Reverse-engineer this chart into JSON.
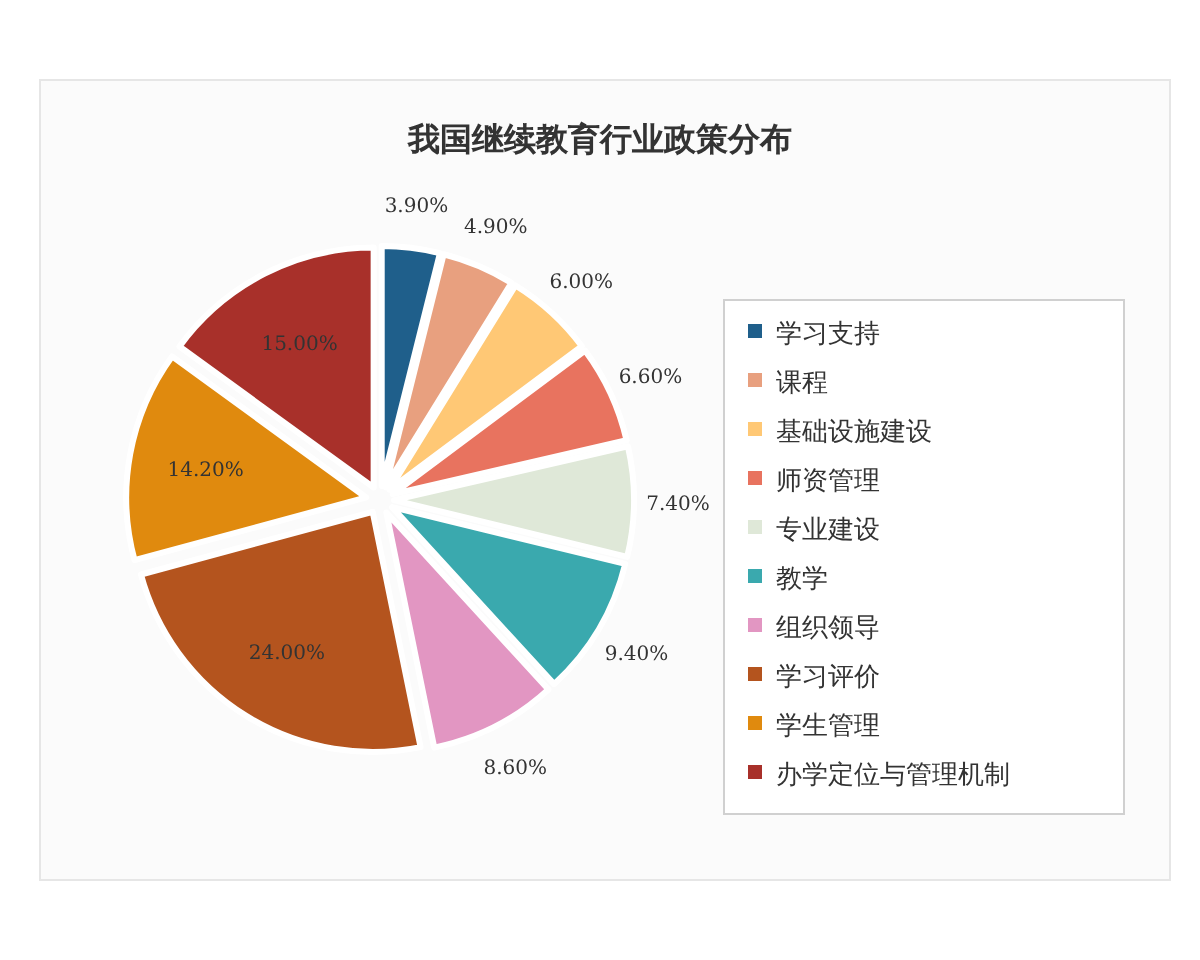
{
  "chart_data": {
    "type": "pie",
    "title": "我国继续教育行业政策分布",
    "categories": [
      "学习支持",
      "课程",
      "基础设施建设",
      "师资管理",
      "专业建设",
      "教学",
      "组织领导",
      "学习评价",
      "学生管理",
      "办学定位与管理机制"
    ],
    "values": [
      3.9,
      4.9,
      6.0,
      6.6,
      7.4,
      9.4,
      8.6,
      24.0,
      14.2,
      15.0
    ],
    "value_labels": [
      "3.90%",
      "4.90%",
      "6.00%",
      "6.60%",
      "7.40%",
      "9.40%",
      "8.60%",
      "24.00%",
      "14.20%",
      "15.00%"
    ],
    "colors": [
      "#1f5f8b",
      "#e8a07f",
      "#ffc875",
      "#e8735f",
      "#dfe8d8",
      "#3aa9ae",
      "#e296c2",
      "#b4541e",
      "#e08a0e",
      "#a8302a"
    ],
    "legend": "right"
  }
}
